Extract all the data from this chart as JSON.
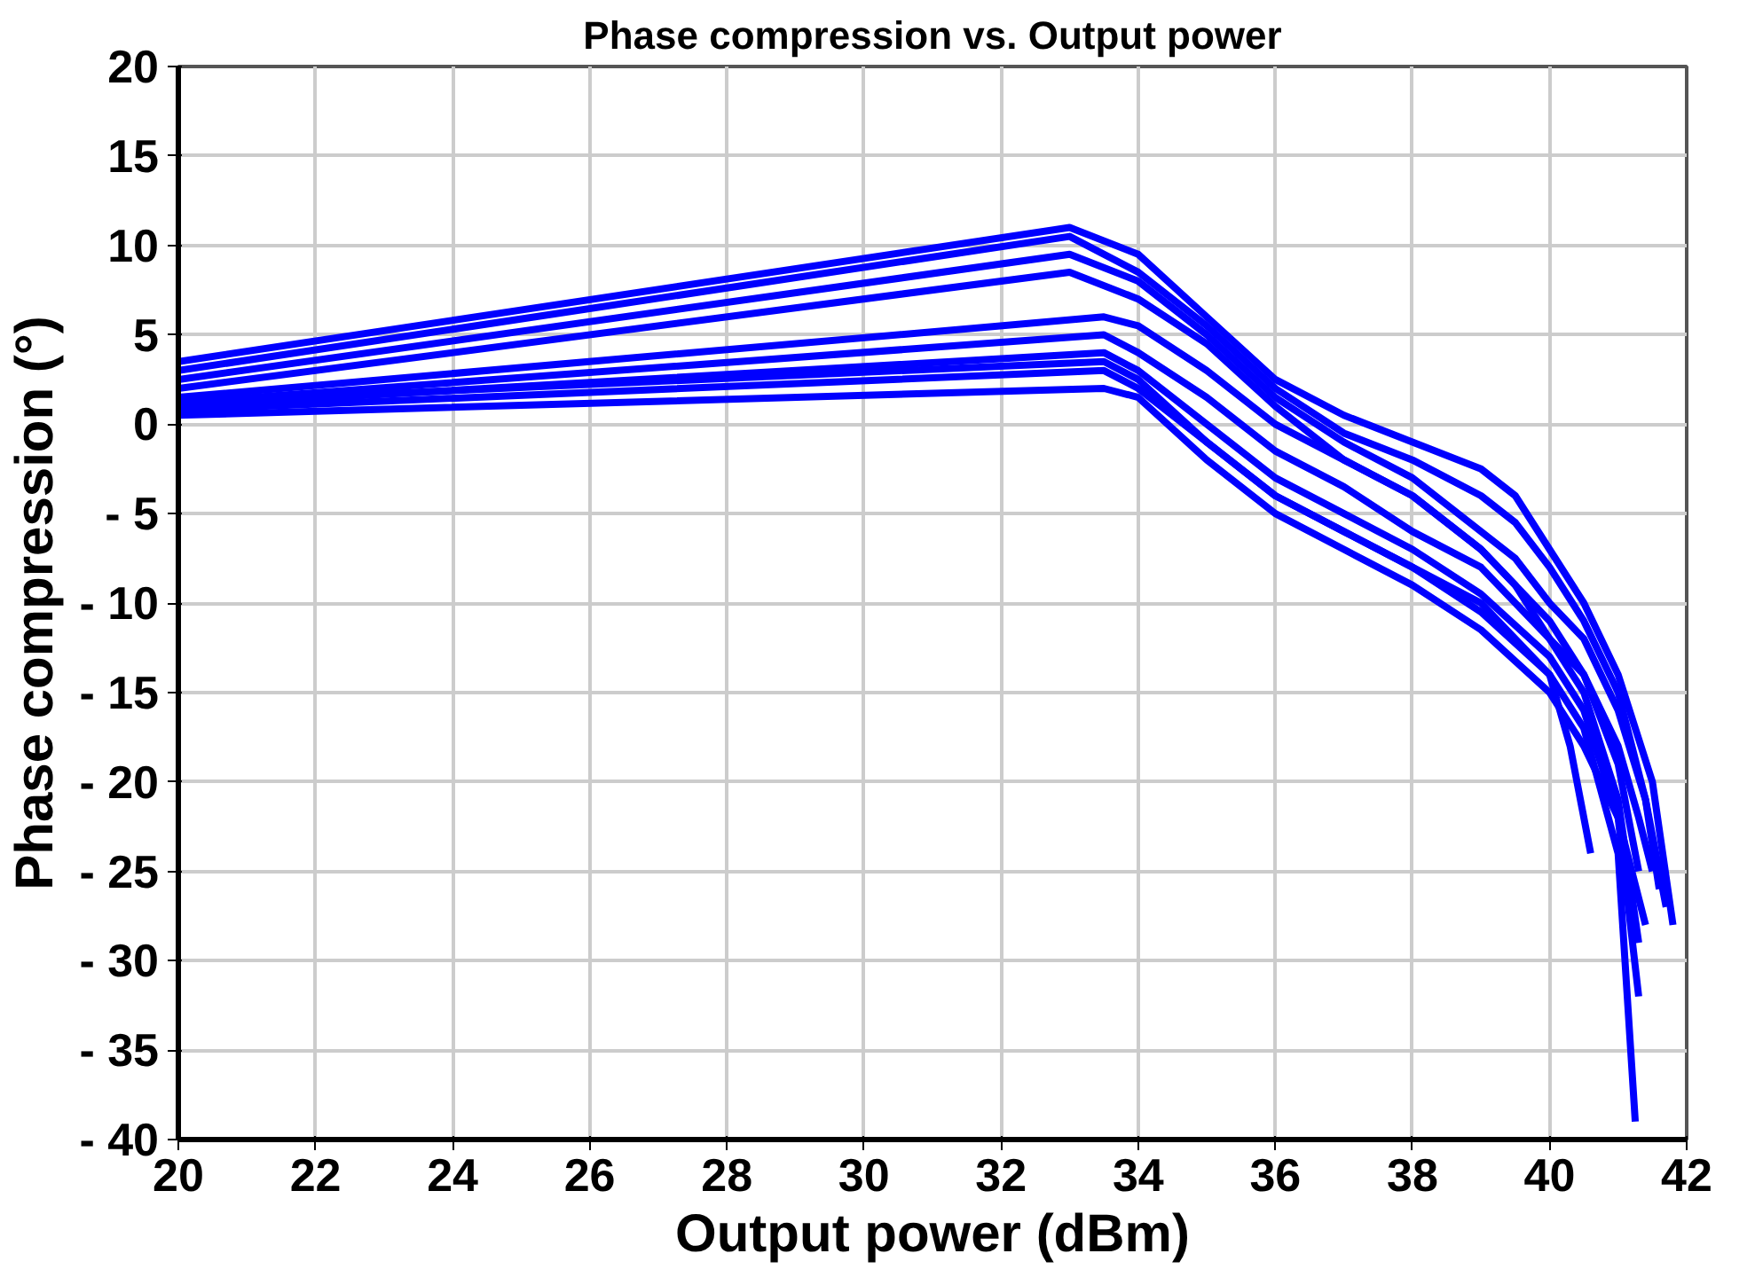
{
  "chart_data": {
    "type": "line",
    "title": "Phase compression vs. Output power",
    "xlabel": "Output power (dBm)",
    "ylabel": "Phase compression (°)",
    "xlim": [
      20,
      42
    ],
    "xticks": [
      20,
      22,
      24,
      26,
      28,
      30,
      32,
      34,
      36,
      38,
      40,
      42
    ],
    "ylim": [
      -40,
      20
    ],
    "yticks": [
      20,
      15,
      10,
      5,
      0,
      {
        "value": -5,
        "label": "- 5"
      },
      {
        "value": -10,
        "label": "- 10"
      },
      {
        "value": -15,
        "label": "- 15"
      },
      {
        "value": -20,
        "label": "- 20"
      },
      {
        "value": -25,
        "label": "- 25"
      },
      {
        "value": -30,
        "label": "- 30"
      },
      {
        "value": -35,
        "label": "- 35"
      },
      {
        "value": -40,
        "label": "- 40"
      }
    ],
    "grid": true,
    "marker": "none",
    "line_style": "solid",
    "series": [
      {
        "color": "#0000ff",
        "x": [
          20,
          33,
          34,
          35,
          36,
          37,
          38,
          39,
          39.5,
          40,
          40.5,
          41,
          41.5,
          41.8
        ],
        "values": [
          3.5,
          11,
          9.5,
          6,
          2.5,
          0.5,
          -1,
          -2.5,
          -4,
          -7,
          -10,
          -14,
          -20,
          -28
        ]
      },
      {
        "color": "#0000ff",
        "x": [
          20,
          33,
          34,
          35,
          36,
          37,
          38,
          39,
          39.5,
          40,
          40.5,
          41,
          41.4,
          41.7
        ],
        "values": [
          3,
          10.5,
          8.5,
          5.5,
          2,
          -0.5,
          -2,
          -4,
          -5.5,
          -8,
          -11,
          -15,
          -21,
          -27
        ]
      },
      {
        "color": "#0000ff",
        "x": [
          20,
          33,
          34,
          35,
          36,
          37,
          38,
          39,
          39.5,
          40,
          40.5,
          41,
          41.4,
          41.6
        ],
        "values": [
          2.5,
          9.5,
          8,
          5,
          1.5,
          -1,
          -3,
          -6,
          -7.5,
          -10,
          -12,
          -16,
          -21,
          -26
        ]
      },
      {
        "color": "#0000ff",
        "x": [
          20,
          33,
          34,
          35,
          36,
          37,
          38,
          39,
          39.5,
          40,
          40.5,
          41,
          41.3,
          41.5
        ],
        "values": [
          2,
          8.5,
          7,
          4.5,
          1,
          -2,
          -4,
          -7,
          -9,
          -12,
          -14,
          -18,
          -22,
          -25
        ]
      },
      {
        "color": "#0000ff",
        "x": [
          20,
          33.5,
          34,
          35,
          36,
          37,
          38,
          39,
          40,
          40.5,
          41,
          41.3
        ],
        "values": [
          1.5,
          6,
          5.5,
          3,
          0,
          -2,
          -4,
          -7,
          -11,
          -14,
          -19,
          -25
        ]
      },
      {
        "color": "#0000ff",
        "x": [
          20,
          33.5,
          34,
          35,
          36,
          37,
          38,
          39,
          40,
          40.5,
          41,
          41.3
        ],
        "values": [
          1.2,
          5,
          4,
          1.5,
          -1.5,
          -3.5,
          -6,
          -8,
          -12,
          -15,
          -21,
          -29
        ]
      },
      {
        "color": "#0000ff",
        "x": [
          20,
          33.5,
          34,
          35,
          36,
          37,
          38,
          39,
          40,
          40.5,
          41,
          41.3
        ],
        "values": [
          1,
          4,
          3,
          0,
          -3,
          -5,
          -7,
          -9.5,
          -13,
          -16,
          -22,
          -32
        ]
      },
      {
        "color": "#0000ff",
        "x": [
          20,
          33.5,
          34,
          35,
          36,
          37,
          38,
          39,
          40,
          40.5,
          41,
          41.25
        ],
        "values": [
          0.8,
          3,
          2,
          -1,
          -4,
          -6,
          -8,
          -10.5,
          -14,
          -17,
          -24,
          -39
        ]
      },
      {
        "color": "#0000ff",
        "x": [
          20,
          33.5,
          34,
          35,
          36,
          37,
          38,
          39,
          40,
          40.5,
          41,
          41.4
        ],
        "values": [
          0.5,
          2,
          1.5,
          -2,
          -5,
          -7,
          -9,
          -11.5,
          -15,
          -18,
          -22,
          -28
        ]
      },
      {
        "color": "#0000ff",
        "x": [
          20,
          33.5,
          34,
          35,
          36,
          37,
          38,
          39,
          40,
          40.3,
          40.6
        ],
        "values": [
          1.2,
          3.5,
          2.5,
          -1,
          -4,
          -6,
          -8,
          -10,
          -14,
          -18,
          -24
        ]
      }
    ]
  }
}
